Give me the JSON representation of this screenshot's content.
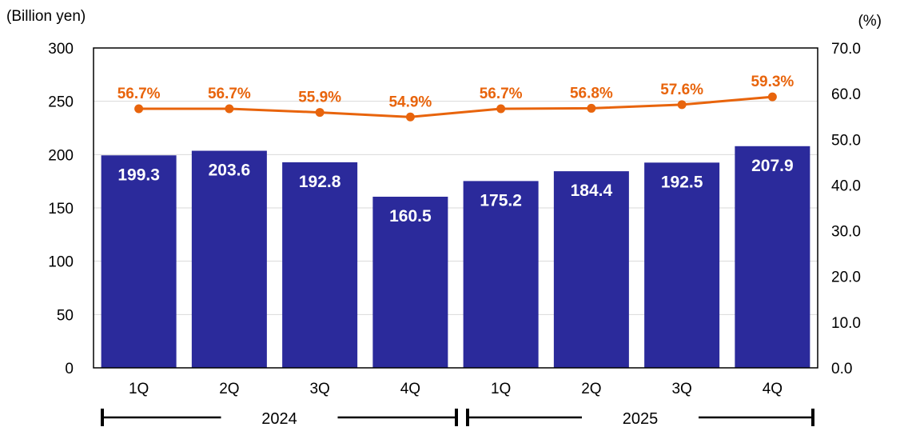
{
  "chart_data": {
    "type": "bar",
    "left_axis_label": "(Billion yen)",
    "right_axis_label": "(%)",
    "left_ylim": [
      0,
      300
    ],
    "left_ticks": [
      "0",
      "50",
      "100",
      "150",
      "200",
      "250",
      "300"
    ],
    "right_ylim": [
      0,
      70
    ],
    "right_ticks": [
      "0.0",
      "10.0",
      "20.0",
      "30.0",
      "40.0",
      "50.0",
      "60.0",
      "70.0"
    ],
    "categories": [
      "1Q",
      "2Q",
      "3Q",
      "4Q",
      "1Q",
      "2Q",
      "3Q",
      "4Q"
    ],
    "groups": [
      {
        "label": "2024",
        "from": 0,
        "to": 3
      },
      {
        "label": "2025",
        "from": 4,
        "to": 7
      }
    ],
    "grid": true,
    "series": [
      {
        "name": "bars",
        "type": "bar",
        "axis": "left",
        "color": "#2b2a9b",
        "values": [
          199.3,
          203.6,
          192.8,
          160.5,
          175.2,
          184.4,
          192.5,
          207.9
        ],
        "labels": [
          "199.3",
          "203.6",
          "192.8",
          "160.5",
          "175.2",
          "184.4",
          "192.5",
          "207.9"
        ]
      },
      {
        "name": "ratio",
        "type": "line",
        "axis": "right",
        "color": "#e8640c",
        "values": [
          56.7,
          56.7,
          55.9,
          54.9,
          56.7,
          56.8,
          57.6,
          59.3
        ],
        "labels": [
          "56.7%",
          "56.7%",
          "55.9%",
          "54.9%",
          "56.7%",
          "56.8%",
          "57.6%",
          "59.3%"
        ]
      }
    ]
  }
}
